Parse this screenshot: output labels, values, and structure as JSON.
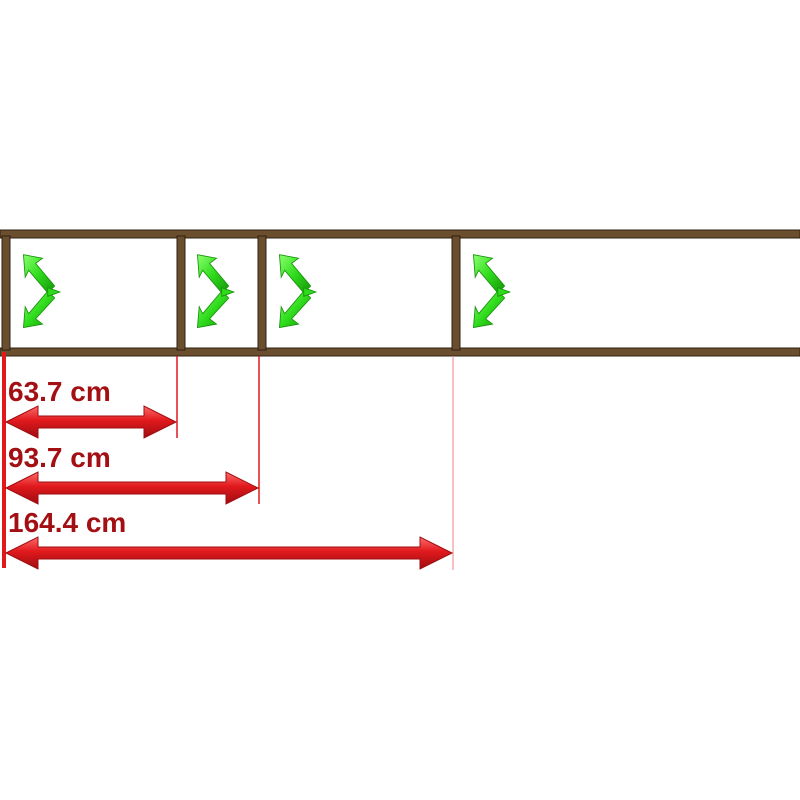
{
  "colors": {
    "frame": "#6b4e2e",
    "frame_edge": "#2e2014",
    "panel": "#ffffff",
    "dimension": "#d9161a",
    "dimension_dark": "#a30f12",
    "label": "#a30f12",
    "opening_arrow": "#33e020",
    "opening_arrow_dark": "#1a9e0c"
  },
  "diagram": {
    "icon": "green-swing-arrow-icon",
    "dimensions": [
      {
        "label": "63.7 cm"
      },
      {
        "label": "93.7 cm"
      },
      {
        "label": "164.4 cm"
      }
    ]
  }
}
